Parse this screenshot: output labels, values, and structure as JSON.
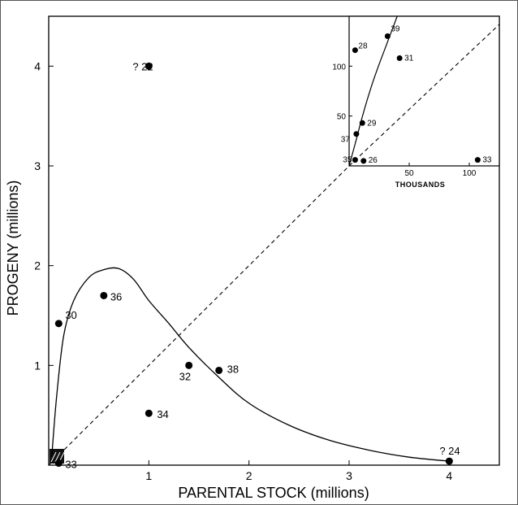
{
  "chart_data": [
    {
      "type": "scatter",
      "title": "",
      "xlabel": "PARENTAL STOCK (millions)",
      "ylabel": "PROGENY (millions)",
      "xlim": [
        0,
        4.5
      ],
      "ylim": [
        0,
        4.5
      ],
      "xticks": [
        "1",
        "2",
        "3",
        "4"
      ],
      "yticks": [
        "1",
        "2",
        "3",
        "4"
      ],
      "points": [
        {
          "label": "30",
          "x": 0.1,
          "y": 1.42
        },
        {
          "label": "36",
          "x": 0.55,
          "y": 1.7
        },
        {
          "label": "22",
          "x": 1.0,
          "y": 4.0,
          "prefix": "?"
        },
        {
          "label": "32",
          "x": 1.4,
          "y": 1.0
        },
        {
          "label": "38",
          "x": 1.7,
          "y": 0.95
        },
        {
          "label": "34",
          "x": 1.0,
          "y": 0.52
        },
        {
          "label": "24",
          "x": 4.0,
          "y": 0.04,
          "prefix": "?"
        },
        {
          "label": "33",
          "x": 0.1,
          "y": 0.02
        }
      ],
      "curve": {
        "name": "stock-recruitment curve",
        "x": [
          0.03,
          0.08,
          0.15,
          0.25,
          0.4,
          0.55,
          0.7,
          0.85,
          1.0,
          1.2,
          1.4,
          1.7,
          2.0,
          2.4,
          2.8,
          3.2,
          3.6,
          4.0
        ],
        "y": [
          0.08,
          0.7,
          1.3,
          1.65,
          1.88,
          1.96,
          1.97,
          1.86,
          1.65,
          1.42,
          1.18,
          0.88,
          0.62,
          0.4,
          0.25,
          0.15,
          0.08,
          0.04
        ]
      },
      "diagonal": {
        "name": "replacement line",
        "x": [
          0,
          4.5
        ],
        "y": [
          0,
          4.5
        ]
      }
    },
    {
      "type": "scatter",
      "title": "",
      "xlabel": "THOUSANDS",
      "ylabel": "",
      "xlim": [
        0,
        125
      ],
      "ylim": [
        0,
        150
      ],
      "xticks": [
        "50",
        "100"
      ],
      "yticks": [
        "50",
        "100"
      ],
      "points": [
        {
          "label": "39",
          "x": 32,
          "y": 130
        },
        {
          "label": "28",
          "x": 5,
          "y": 116
        },
        {
          "label": "31",
          "x": 42,
          "y": 108
        },
        {
          "label": "29",
          "x": 11,
          "y": 43
        },
        {
          "label": "37",
          "x": 6,
          "y": 32
        },
        {
          "label": "35",
          "x": 5,
          "y": 6
        },
        {
          "label": "26",
          "x": 12,
          "y": 5
        },
        {
          "label": "33",
          "x": 107,
          "y": 6
        }
      ],
      "curve": {
        "name": "inset curve",
        "x": [
          0,
          5,
          10,
          15,
          20,
          25,
          30,
          35,
          40
        ],
        "y": [
          0,
          22,
          45,
          66,
          85,
          102,
          118,
          134,
          150
        ]
      },
      "diagonal": {
        "name": "replacement line",
        "x": [
          0,
          125
        ],
        "y": [
          0,
          150
        ]
      }
    }
  ]
}
